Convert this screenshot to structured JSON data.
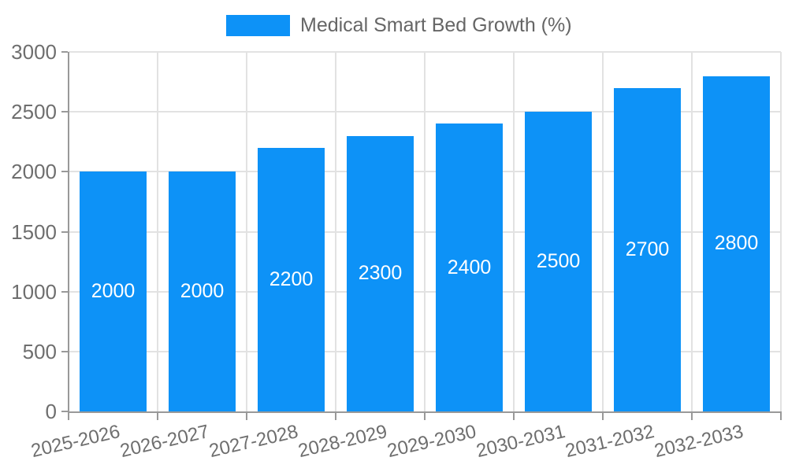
{
  "chart_data": {
    "type": "bar",
    "title": "Medical Smart Bed Growth (%)",
    "legend": [
      {
        "label": "Medical Smart Bed Growth (%)"
      }
    ],
    "legend_position": "top-center",
    "categories": [
      "2025-2026",
      "2026-2027",
      "2027-2028",
      "2028-2029",
      "2029-2030",
      "2030-2031",
      "2031-2032",
      "2032-2033"
    ],
    "series": [
      {
        "name": "Medical Smart Bed Growth (%)",
        "values": [
          2000,
          2000,
          2200,
          2300,
          2400,
          2500,
          2700,
          2800
        ]
      }
    ],
    "value_labels": [
      "2000",
      "2000",
      "2200",
      "2300",
      "2400",
      "2500",
      "2700",
      "2800"
    ],
    "value_label_position": "inside-center",
    "xlabel": "",
    "ylabel": "",
    "ylim": [
      0,
      3000
    ],
    "yticks": [
      0,
      500,
      1000,
      1500,
      2000,
      2500,
      3000
    ],
    "ytick_labels": [
      "0",
      "500",
      "1000",
      "1500",
      "2000",
      "2500",
      "3000"
    ],
    "grid": true,
    "colors": {
      "bar": "#0d92f7",
      "bar_value_text": "#ffffff",
      "axis_text": "#6e6e6e",
      "legend_text": "#666666",
      "gridline": "#e2e2e2",
      "axis_line": "#999999",
      "background": "#ffffff"
    }
  }
}
